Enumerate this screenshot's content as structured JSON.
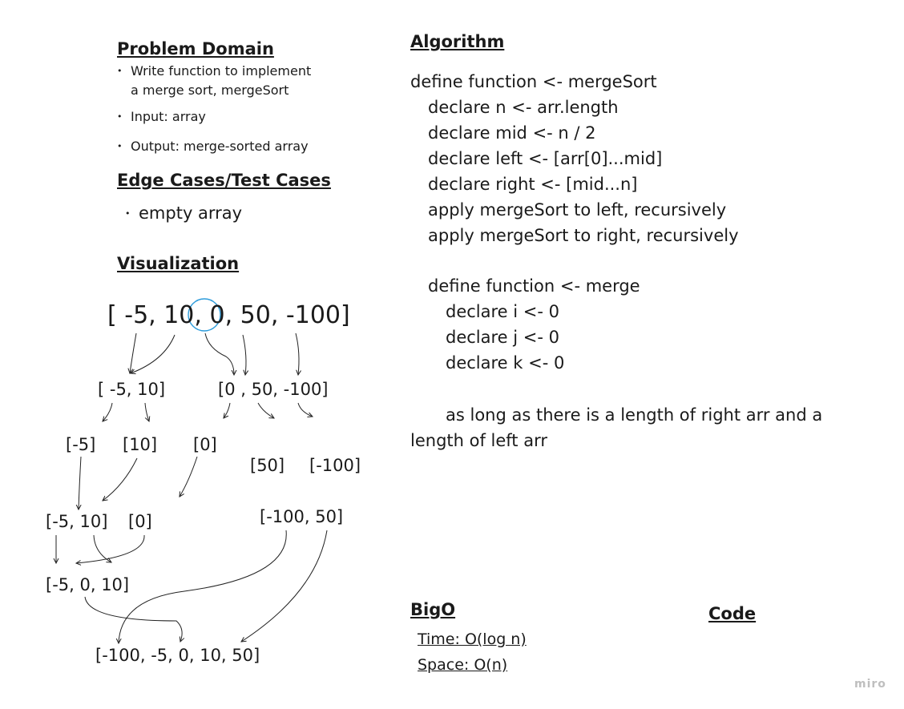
{
  "problem_domain": {
    "title": "Problem Domain",
    "items": [
      {
        "line1": "Write function to implement",
        "line2": "a merge sort, mergeSort"
      },
      {
        "line1": "Input: array",
        "line2": ""
      },
      {
        "line1": "Output: merge-sorted array",
        "line2": ""
      }
    ]
  },
  "edge_cases": {
    "title": "Edge Cases/Test Cases",
    "items": [
      "empty array"
    ]
  },
  "visualization": {
    "title": "Visualization",
    "root": {
      "pre": "[ -5, 10,",
      "mid": "0,",
      "post": "50, -100]"
    },
    "level1": [
      "[ -5, 10]",
      "[0 , 50, -100]"
    ],
    "level2": [
      "[-5]",
      "[10]",
      "[0]",
      "[50]",
      "[-100]"
    ],
    "level3": [
      "[-5, 10]",
      "[0]",
      "[-100, 50]"
    ],
    "level4": [
      "[-5, 0, 10]"
    ],
    "result": "[-100, -5, 0, 10, 50]"
  },
  "algorithm": {
    "title": "Algorithm",
    "lines": [
      "define function <- mergeSort",
      "declare n <- arr.length",
      "declare mid <- n / 2",
      "declare left <- [arr[0]...mid]",
      "declare right <- [mid...n]",
      "apply mergeSort to left, recursively",
      "apply mergeSort to right, recursively",
      "define function <- merge",
      "declare i <- 0",
      "declare j <- 0",
      "declare k <- 0",
      "as long as there is a length of right arr and a",
      "length of left arr"
    ]
  },
  "big_o": {
    "title": "BigO",
    "time": "Time: O(log n)",
    "space": "Space: O(n)"
  },
  "code": {
    "title": "Code"
  },
  "watermark": "miro",
  "colors": {
    "highlight_circle": "#2d9cdb",
    "arrow": "#222222"
  }
}
